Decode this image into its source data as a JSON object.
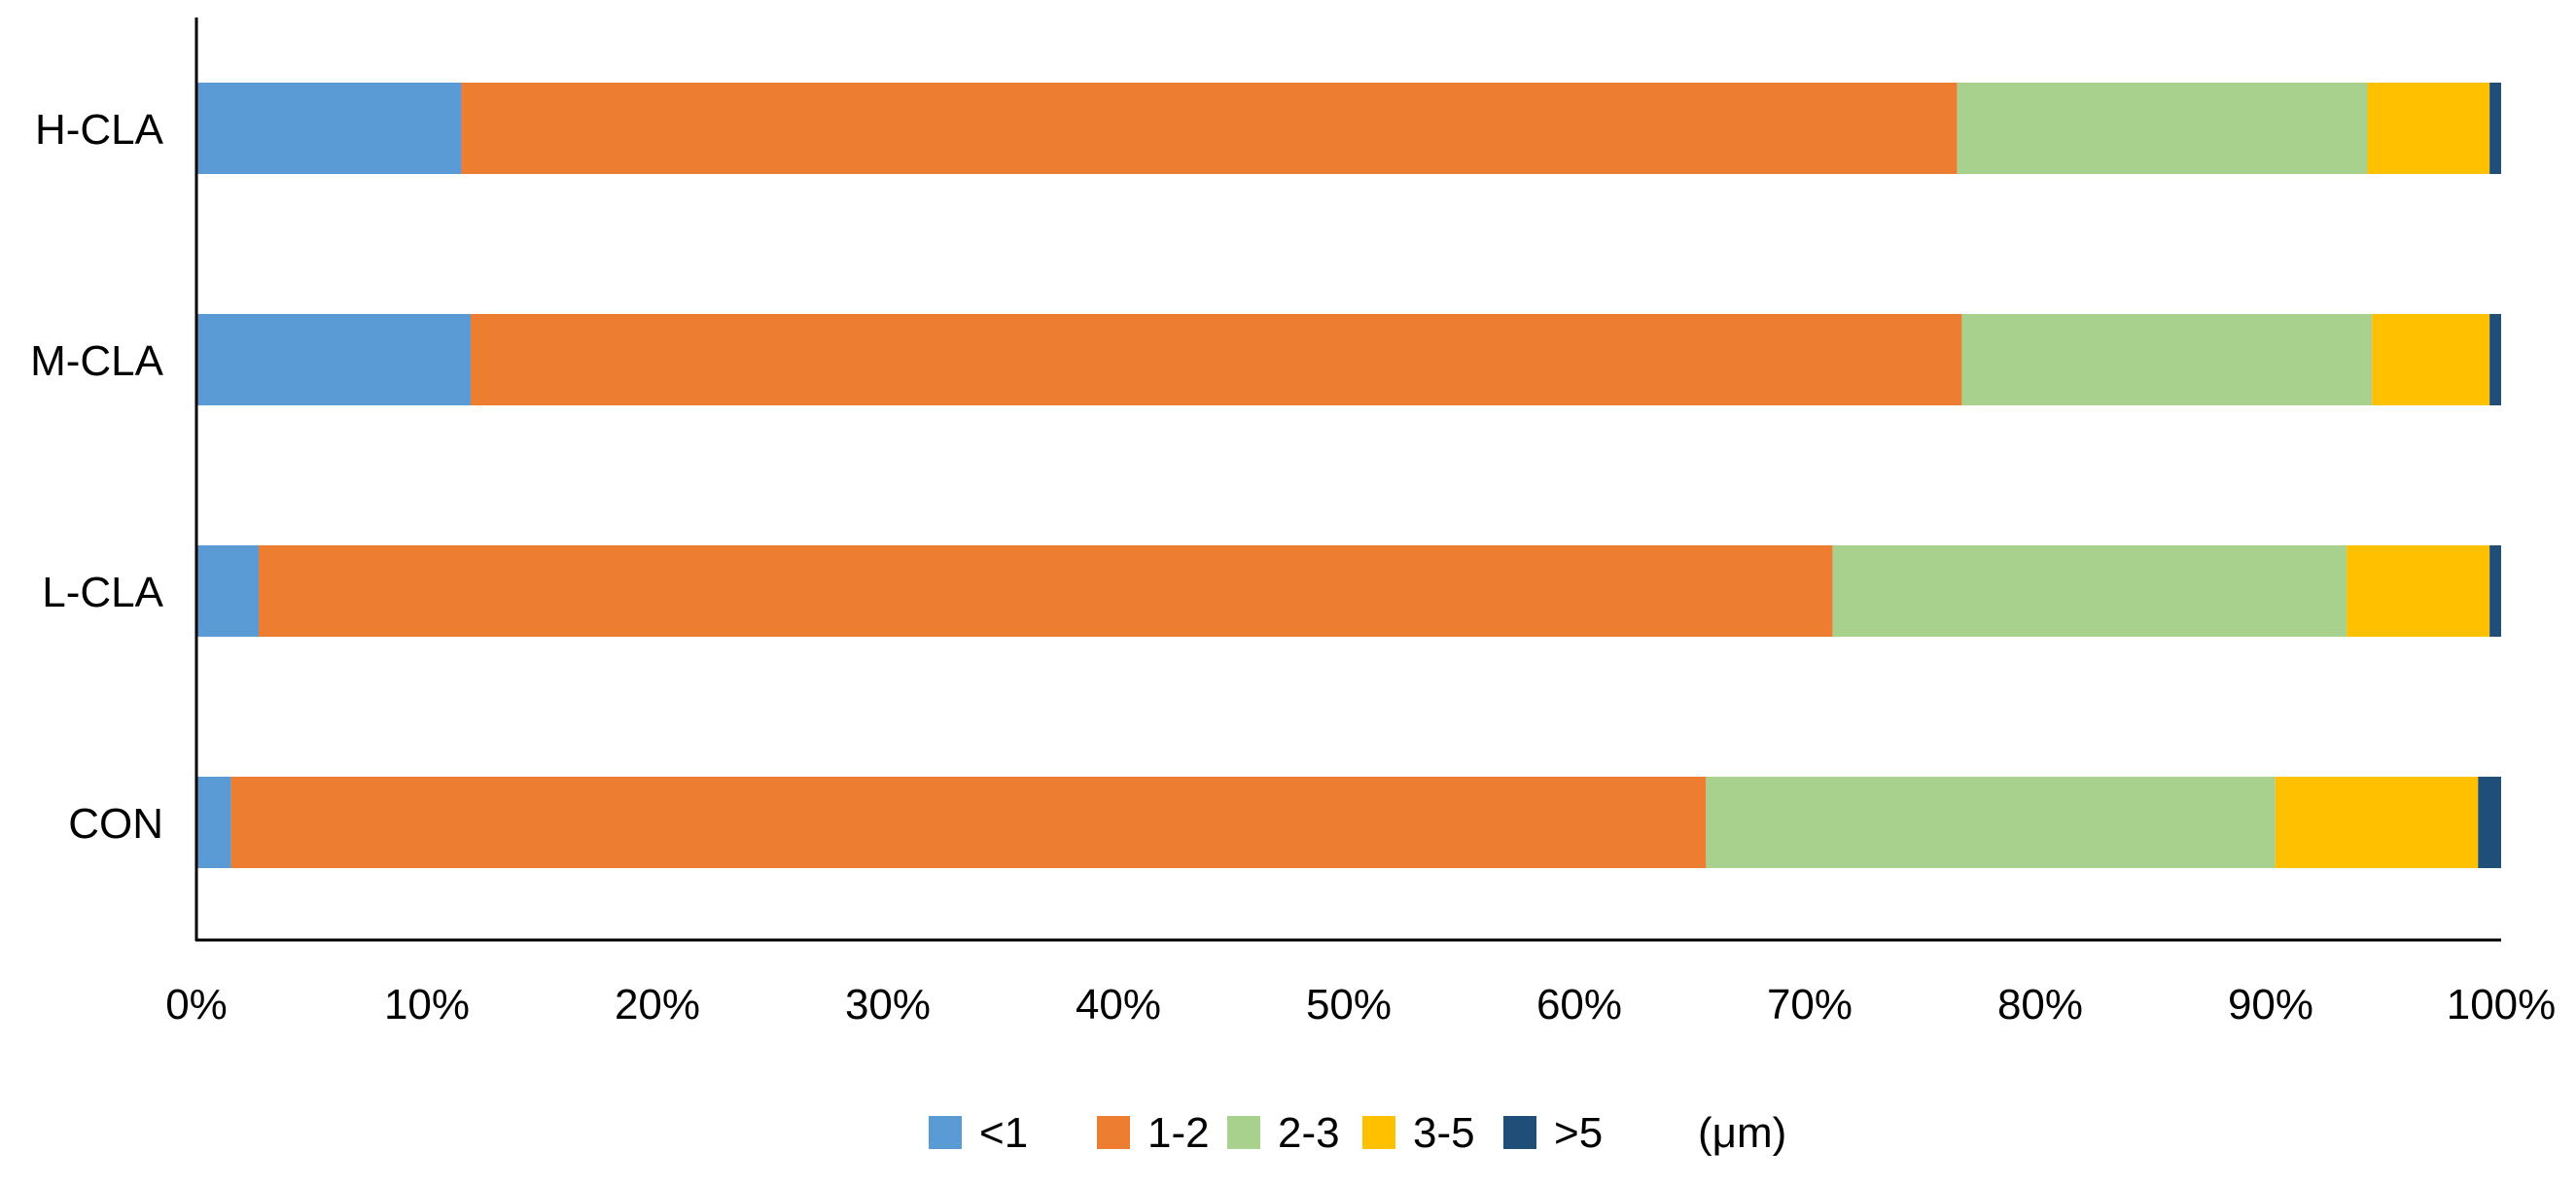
{
  "chart_data": {
    "type": "bar",
    "orientation": "horizontal",
    "stacked": "percent",
    "categories": [
      "H-CLA",
      "M-CLA",
      "L-CLA",
      "CON"
    ],
    "series": [
      {
        "name": "<1",
        "color": "#5B9BD5",
        "values": [
          11.5,
          11.9,
          2.7,
          1.5
        ]
      },
      {
        "name": "1-2",
        "color": "#ED7D31",
        "values": [
          64.9,
          64.7,
          68.3,
          64.0
        ]
      },
      {
        "name": "2-3",
        "color": "#A9D18E",
        "values": [
          17.8,
          17.8,
          22.3,
          24.7
        ]
      },
      {
        "name": "3-5",
        "color": "#FFC000",
        "values": [
          5.3,
          5.1,
          6.2,
          8.8
        ]
      },
      {
        "name": ">5",
        "color": "#1F4E79",
        "values": [
          0.5,
          0.5,
          0.5,
          1.0
        ]
      }
    ],
    "legend_display": [
      "<1",
      "1-2",
      "2-3",
      "3-5",
      ">5"
    ],
    "legend_position": "bottom",
    "unit_label": "(μm)",
    "xlim": [
      0,
      100
    ],
    "x_ticks": [
      "0%",
      "10%",
      "20%",
      "30%",
      "40%",
      "50%",
      "60%",
      "70%",
      "80%",
      "90%",
      "100%"
    ],
    "grid": false,
    "title": "",
    "xlabel": "",
    "ylabel": ""
  }
}
